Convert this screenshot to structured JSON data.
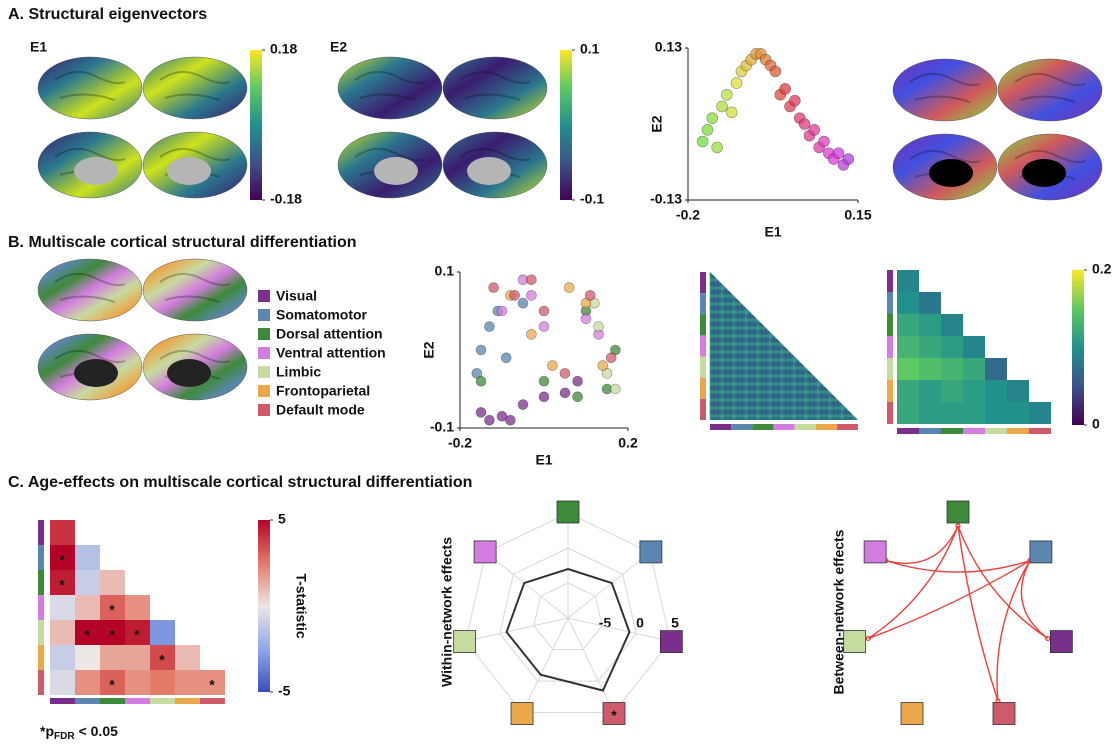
{
  "panel_a": {
    "title": "A. Structural eigenvectors",
    "e1": {
      "label": "E1",
      "colorbar": {
        "lim": [
          -0.18,
          0.18
        ],
        "ticks": [
          -0.18,
          0.18
        ]
      }
    },
    "e2": {
      "label": "E2",
      "colorbar": {
        "lim": [
          -0.1,
          0.1
        ],
        "ticks": [
          -0.1,
          0.1
        ]
      }
    },
    "scatter": {
      "type": "scatter",
      "x_label": "E1",
      "y_label": "E2",
      "xlim": [
        -0.2,
        0.15
      ],
      "ylim": [
        -0.13,
        0.13
      ],
      "xticks": [
        -0.2,
        0.15
      ],
      "yticks": [
        -0.13,
        0.13
      ],
      "x": [
        -0.17,
        -0.16,
        -0.15,
        -0.14,
        -0.13,
        -0.12,
        -0.11,
        -0.1,
        -0.09,
        -0.08,
        -0.07,
        -0.06,
        -0.05,
        -0.04,
        -0.03,
        -0.02,
        -0.01,
        0,
        0.01,
        0.02,
        0.03,
        0.04,
        0.05,
        0.06,
        0.07,
        0.08,
        0.09,
        0.1,
        0.11,
        0.12,
        0.13
      ],
      "y": [
        -0.03,
        -0.01,
        0.01,
        -0.04,
        0.03,
        0.05,
        0.02,
        0.07,
        0.09,
        0.1,
        0.11,
        0.12,
        0.12,
        0.11,
        0.1,
        0.09,
        0.05,
        0.06,
        0.03,
        0.04,
        0.01,
        0,
        -0.02,
        -0.01,
        -0.04,
        -0.03,
        -0.05,
        -0.06,
        -0.05,
        -0.07,
        -0.06
      ]
    }
  },
  "panel_b": {
    "title": "B. Multiscale cortical structural differentiation",
    "networks": [
      {
        "name": "Visual",
        "color": "#7b2f8c"
      },
      {
        "name": "Somatomotor",
        "color": "#5b86b0"
      },
      {
        "name": "Dorsal attention",
        "color": "#3d8a3a"
      },
      {
        "name": "Ventral attention",
        "color": "#d47ce0"
      },
      {
        "name": "Limbic",
        "color": "#c6dba0"
      },
      {
        "name": "Frontoparietal",
        "color": "#eba84a"
      },
      {
        "name": "Default mode",
        "color": "#cf5a6a"
      }
    ],
    "scatter": {
      "type": "scatter",
      "x_label": "E1",
      "y_label": "E2",
      "xlim": [
        -0.2,
        0.2
      ],
      "ylim": [
        -0.1,
        0.1
      ],
      "xticks": [
        -0.2,
        0.2
      ],
      "yticks": [
        -0.1,
        0.1
      ],
      "series": [
        {
          "network": 0,
          "x": [
            -0.15,
            -0.13,
            -0.1,
            -0.08,
            -0.05,
            0,
            0.05,
            0.08
          ],
          "y": [
            -0.08,
            -0.09,
            -0.085,
            -0.09,
            -0.07,
            -0.06,
            -0.055,
            -0.04
          ]
        },
        {
          "network": 1,
          "x": [
            -0.16,
            -0.15,
            -0.13,
            -0.11,
            -0.09,
            -0.05
          ],
          "y": [
            -0.03,
            0,
            0.03,
            0.05,
            -0.01,
            0.06
          ]
        },
        {
          "network": 2,
          "x": [
            -0.15,
            0,
            0.08,
            0.15,
            0.17,
            0.1
          ],
          "y": [
            -0.04,
            -0.04,
            -0.06,
            -0.05,
            0,
            0.05
          ]
        },
        {
          "network": 3,
          "x": [
            -0.1,
            -0.05,
            -0.03,
            0,
            0.1,
            0.13
          ],
          "y": [
            0.05,
            0.09,
            0.07,
            0.03,
            0.04,
            0.02
          ]
        },
        {
          "network": 4,
          "x": [
            0.13,
            0.15,
            0.17,
            0.12
          ],
          "y": [
            0.03,
            -0.03,
            -0.05,
            0.06
          ]
        },
        {
          "network": 5,
          "x": [
            -0.08,
            -0.03,
            0.02,
            0.06,
            0.1,
            0.14
          ],
          "y": [
            0.07,
            0.02,
            -0.02,
            0.08,
            0.06,
            -0.02
          ]
        },
        {
          "network": 6,
          "x": [
            -0.12,
            -0.07,
            -0.03,
            0,
            0.05,
            0.11,
            0.16
          ],
          "y": [
            0.08,
            0.07,
            0.09,
            0.05,
            -0.03,
            0.07,
            -0.01
          ]
        }
      ]
    },
    "matrix": {
      "lim": [
        0,
        0.2
      ],
      "ticks": [
        0,
        0.2
      ],
      "rows": [
        [
          0.09
        ],
        [
          0.1,
          0.08
        ],
        [
          0.12,
          0.11,
          0.09
        ],
        [
          0.13,
          0.12,
          0.11,
          0.09
        ],
        [
          0.15,
          0.14,
          0.13,
          0.12,
          0.07
        ],
        [
          0.12,
          0.11,
          0.12,
          0.11,
          0.1,
          0.09
        ],
        [
          0.12,
          0.11,
          0.11,
          0.11,
          0.1,
          0.1,
          0.09
        ]
      ]
    }
  },
  "panel_c": {
    "title": "C. Age-effects on multiscale cortical structural differentiation",
    "star": "*",
    "heatmap": {
      "lim": [
        -5,
        5
      ],
      "ticks": [
        -5,
        5
      ],
      "colorbar_label": "T-statistic",
      "rows": [
        [
          4
        ],
        [
          5,
          -1.5
        ],
        [
          4.5,
          -1,
          1
        ],
        [
          -0.5,
          1,
          3,
          2
        ],
        [
          1,
          5,
          5,
          4.5,
          -3
        ],
        [
          -1,
          0,
          1.5,
          1.5,
          3.5,
          1
        ],
        [
          -0.5,
          2,
          3,
          2,
          2.5,
          2,
          2
        ]
      ],
      "significant": [
        [
          false
        ],
        [
          true,
          false
        ],
        [
          true,
          false,
          false
        ],
        [
          false,
          false,
          true,
          false
        ],
        [
          false,
          true,
          true,
          true,
          false
        ],
        [
          false,
          false,
          false,
          false,
          true,
          false
        ],
        [
          false,
          false,
          true,
          false,
          false,
          false,
          true
        ]
      ]
    },
    "footnote": {
      "p": "p",
      "sub": "FDR",
      "rest": "< 0.05"
    },
    "within": {
      "label": "Within-network effects",
      "rlim": [
        -10,
        7
      ],
      "rticks": [
        -5,
        0,
        5
      ],
      "values": [
        -1,
        -2,
        -3,
        -2,
        -1,
        -1,
        1.5
      ],
      "significant": [
        false,
        false,
        false,
        false,
        false,
        false,
        true
      ]
    },
    "between": {
      "label": "Between-network effects",
      "edges": [
        [
          2,
          3
        ],
        [
          2,
          4
        ],
        [
          2,
          6
        ],
        [
          2,
          0
        ],
        [
          1,
          3
        ],
        [
          1,
          4
        ],
        [
          1,
          0
        ],
        [
          1,
          6
        ]
      ]
    }
  }
}
